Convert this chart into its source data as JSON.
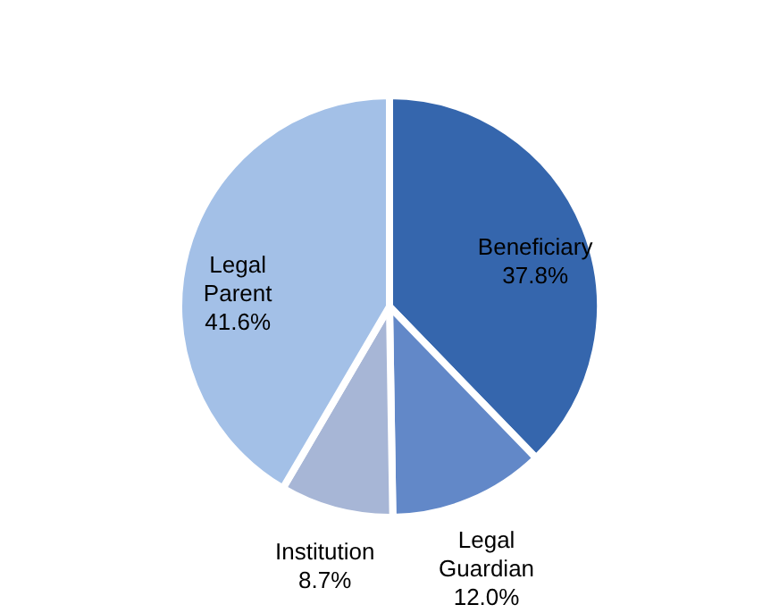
{
  "chart_data": {
    "type": "pie",
    "categories": [
      "Beneficiary",
      "Legal Guardian",
      "Institution",
      "Legal Parent"
    ],
    "values": [
      37.8,
      12.0,
      8.7,
      41.6
    ],
    "value_labels": [
      "37.8%",
      "12.0%",
      "8.7%",
      "41.6%"
    ],
    "colors": [
      "#3566ad",
      "#6288c8",
      "#a7b6d6",
      "#a3c0e7"
    ]
  }
}
